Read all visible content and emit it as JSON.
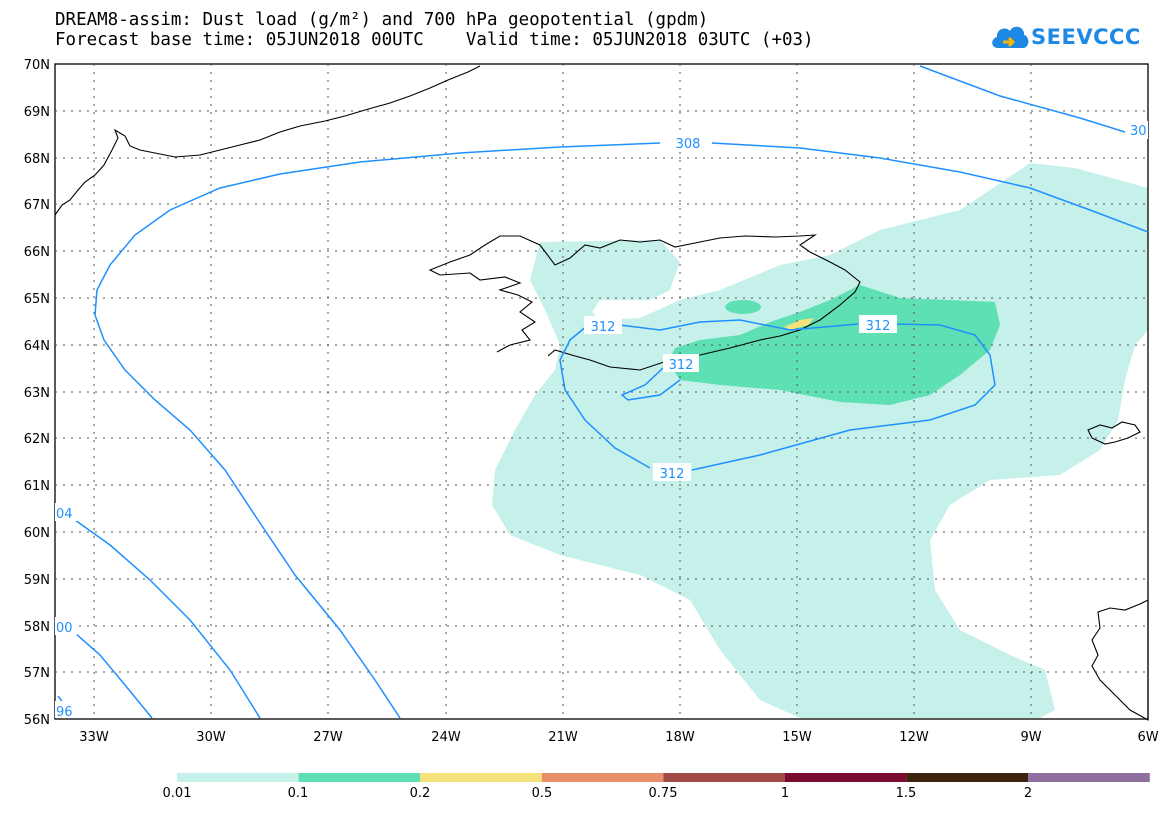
{
  "title": {
    "line1": "DREAM8-assim: Dust load (g/m²) and 700 hPa geopotential (gpdm)",
    "line2": "Forecast base time: 05JUN2018 00UTC    Valid time: 05JUN2018 03UTC (+03)"
  },
  "logo": {
    "text": "SEEVCCC",
    "icon": "cloud-icon"
  },
  "map": {
    "lat_labels": [
      "70N",
      "69N",
      "68N",
      "67N",
      "66N",
      "65N",
      "64N",
      "63N",
      "62N",
      "61N",
      "60N",
      "59N",
      "58N",
      "57N",
      "56N"
    ],
    "lon_labels": [
      "33W",
      "30W",
      "27W",
      "24W",
      "21W",
      "18W",
      "15W",
      "12W",
      "9W",
      "6W"
    ],
    "contour_labels": {
      "c308": "308",
      "c308_right": "30",
      "c312_top": "312",
      "c312_right": "312",
      "c312_inner": "312",
      "c312_bottom": "312",
      "c304_left": "04",
      "c300_left": "00",
      "c296_left": "96"
    },
    "contour_color": "#1e90ff",
    "coastline_color": "#000000"
  },
  "colorbar": {
    "labels": [
      "0.01",
      "0.1",
      "0.2",
      "0.5",
      "0.75",
      "1",
      "1.5",
      "2"
    ],
    "colors": [
      "#c6f1eb",
      "#5fdfb4",
      "#f5e27a",
      "#e88f69",
      "#a04a43",
      "#7a0c2f",
      "#3b2310",
      "#8e6fa0"
    ]
  }
}
